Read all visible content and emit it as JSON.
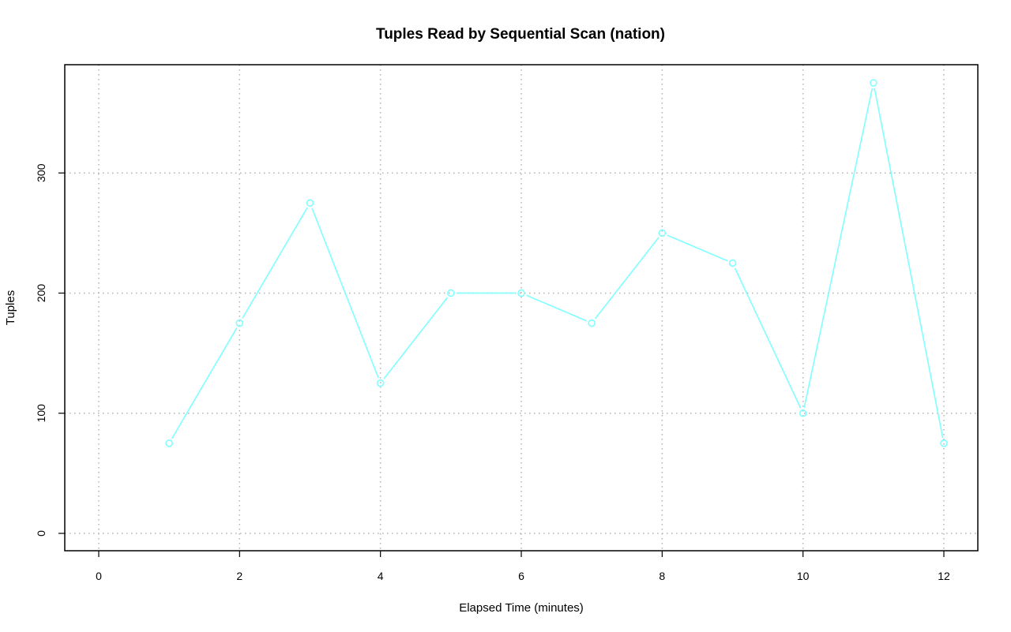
{
  "chart_data": {
    "type": "line",
    "title": "Tuples Read by Sequential Scan (nation)",
    "xlabel": "Elapsed Time (minutes)",
    "ylabel": "Tuples",
    "xlim": [
      0,
      12
    ],
    "ylim": [
      0,
      375
    ],
    "x_ticks": [
      0,
      2,
      4,
      6,
      8,
      10,
      12
    ],
    "y_ticks": [
      0,
      100,
      200,
      300
    ],
    "grid": true,
    "marker": "open-circle",
    "series": [
      {
        "color": "#7fffff",
        "x": [
          1,
          2,
          3,
          4,
          5,
          6,
          7,
          8,
          9,
          10,
          11,
          12
        ],
        "y": [
          75,
          175,
          275,
          125,
          200,
          200,
          175,
          250,
          225,
          100,
          375,
          75
        ]
      }
    ]
  }
}
